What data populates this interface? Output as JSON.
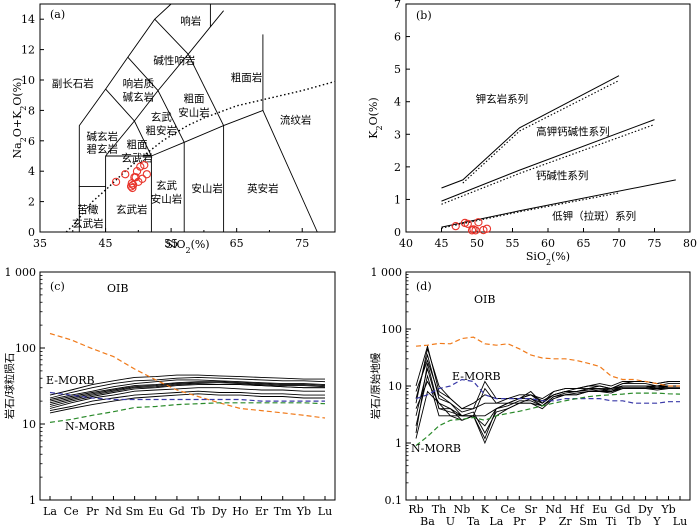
{
  "chart_data": [
    {
      "panel": "(a)",
      "type": "scatter",
      "xlabel": "SiO2(%)",
      "ylabel": "Na2O+K2O(%)",
      "xlim": [
        35,
        80
      ],
      "ylim": [
        0,
        15
      ],
      "x_ticks": [
        "35",
        "45",
        "55",
        "65",
        "75"
      ],
      "y_ticks": [
        "0",
        "2",
        "4",
        "6",
        "8",
        "10",
        "12",
        "14"
      ],
      "field_labels": [
        {
          "text": "响岩",
          "x": 58,
          "y": 13.9
        },
        {
          "text": "碱性响岩",
          "x": 55.5,
          "y": 11.3
        },
        {
          "text": "副长石岩",
          "x": 40,
          "y": 9.8
        },
        {
          "text": "响岩质",
          "x": 50,
          "y": 9.8
        },
        {
          "text": "碱玄岩",
          "x": 50,
          "y": 8.9
        },
        {
          "text": "粗面岩",
          "x": 66.5,
          "y": 10.2
        },
        {
          "text": "粗面",
          "x": 58.5,
          "y": 8.8
        },
        {
          "text": "安山岩",
          "x": 58.5,
          "y": 7.9
        },
        {
          "text": "流纹岩",
          "x": 74,
          "y": 7.4
        },
        {
          "text": "玄武",
          "x": 53.5,
          "y": 7.6
        },
        {
          "text": "粗安岩",
          "x": 53.5,
          "y": 6.7
        },
        {
          "text": "碱玄岩",
          "x": 44.5,
          "y": 6.3
        },
        {
          "text": "碧玄岩",
          "x": 44.5,
          "y": 5.5
        },
        {
          "text": "粗面",
          "x": 49.8,
          "y": 5.8
        },
        {
          "text": "玄武岩",
          "x": 49.8,
          "y": 4.9
        },
        {
          "text": "玄武",
          "x": 54.3,
          "y": 3.1
        },
        {
          "text": "安山岩",
          "x": 54.3,
          "y": 2.2
        },
        {
          "text": "安山岩",
          "x": 60.5,
          "y": 2.9
        },
        {
          "text": "英安岩",
          "x": 69,
          "y": 2.9
        },
        {
          "text": "玄武岩",
          "x": 49,
          "y": 1.5
        },
        {
          "text": "苦橄",
          "x": 42.3,
          "y": 1.5
        },
        {
          "text": "玄武岩",
          "x": 42.3,
          "y": 0.6
        }
      ],
      "series": [
        {
          "x": [
            46.6,
            48.0,
            49.1,
            49.4,
            49.8,
            50.3,
            50.9,
            50.0,
            49.2,
            49.0,
            48.9,
            50.6,
            51.3,
            49.6
          ],
          "y": [
            3.3,
            3.8,
            2.9,
            3.6,
            4.0,
            4.3,
            4.4,
            3.3,
            3.1,
            3.2,
            3.0,
            3.5,
            3.8,
            3.6
          ],
          "color": "#e8332a"
        }
      ]
    },
    {
      "panel": "(b)",
      "type": "scatter",
      "xlabel": "SiO2(%)",
      "ylabel": "K2O(%)",
      "xlim": [
        40,
        80
      ],
      "ylim": [
        0,
        7
      ],
      "x_ticks": [
        "40",
        "45",
        "50",
        "55",
        "60",
        "65",
        "70",
        "75",
        "80"
      ],
      "y_ticks": [
        "0",
        "1",
        "2",
        "3",
        "4",
        "5",
        "6",
        "7"
      ],
      "series_labels": [
        "钾玄岩系列",
        "高钾钙碱性系列",
        "钙碱性系列",
        "低钾（拉斑）系列"
      ],
      "series": [
        {
          "x": [
            47.0,
            48.3,
            49.3,
            49.8,
            50.2,
            50.9,
            51.4,
            49.5,
            48.7
          ],
          "y": [
            0.18,
            0.28,
            0.05,
            0.05,
            0.3,
            0.06,
            0.1,
            0.08,
            0.25
          ],
          "color": "#e8332a"
        }
      ]
    },
    {
      "panel": "(c)",
      "type": "line",
      "ylabel": "岩石/球粒陨石",
      "yscale": "log",
      "ylim": [
        1,
        1000
      ],
      "y_ticks": [
        "1",
        "10",
        "100",
        "1 000"
      ],
      "categories": [
        "La",
        "Ce",
        "Pr",
        "Nd",
        "Sm",
        "Eu",
        "Gd",
        "Tb",
        "Dy",
        "Ho",
        "Er",
        "Tm",
        "Yb",
        "Lu"
      ],
      "series": [
        {
          "name": "OIB",
          "values": [
            155,
            128,
            98,
            77,
            53,
            38,
            28,
            23,
            19,
            16,
            15,
            14,
            13,
            12
          ],
          "color": "#f07a1a",
          "dash": true
        },
        {
          "name": "E-MORB",
          "values": [
            26,
            24,
            22,
            21,
            21,
            21,
            21,
            21,
            21,
            21,
            20,
            20,
            20,
            20
          ],
          "color": "#3a3aa8",
          "dash": true
        },
        {
          "name": "N-MORB",
          "values": [
            10.5,
            11.5,
            13,
            14.5,
            16.5,
            17,
            18,
            18.5,
            19,
            19,
            19,
            19,
            19,
            18.5
          ],
          "color": "#2a8a2a",
          "dash": true
        },
        {
          "values": [
            17,
            20,
            23,
            26,
            29,
            30,
            32,
            33,
            33,
            33,
            32,
            31,
            30,
            30
          ],
          "color": "#000"
        },
        {
          "values": [
            19,
            22,
            25,
            28,
            31,
            32,
            34,
            35,
            35,
            34,
            33,
            32,
            32,
            31
          ],
          "color": "#000"
        },
        {
          "values": [
            21,
            24,
            27,
            31,
            34,
            36,
            38,
            38,
            37,
            36,
            35,
            34,
            34,
            33
          ],
          "color": "#000"
        },
        {
          "values": [
            22,
            26,
            30,
            34,
            37,
            38,
            40,
            41,
            40,
            39,
            38,
            37,
            37,
            36
          ],
          "color": "#000"
        },
        {
          "values": [
            24,
            28,
            33,
            37,
            41,
            42,
            44,
            44,
            43,
            42,
            41,
            40,
            39,
            39
          ],
          "color": "#000"
        },
        {
          "values": [
            16,
            19,
            22,
            24,
            27,
            28,
            29,
            30,
            30,
            29,
            28,
            28,
            27,
            27
          ],
          "color": "#000"
        },
        {
          "values": [
            15,
            17,
            20,
            22,
            24,
            25,
            26,
            27,
            26,
            26,
            25,
            25,
            24,
            24
          ],
          "color": "#000"
        },
        {
          "values": [
            18,
            21,
            24,
            27,
            30,
            31,
            33,
            34,
            33,
            33,
            32,
            31,
            30,
            30
          ],
          "color": "#000"
        },
        {
          "values": [
            14,
            16,
            18,
            20,
            22,
            23,
            24,
            25,
            24,
            24,
            23,
            23,
            22,
            22
          ],
          "color": "#000"
        },
        {
          "values": [
            20,
            23,
            26,
            29,
            32,
            33,
            35,
            36,
            36,
            35,
            34,
            33,
            33,
            32
          ],
          "color": "#000"
        }
      ]
    },
    {
      "panel": "(d)",
      "type": "line",
      "ylabel": "岩石/原始地幔",
      "yscale": "log",
      "ylim": [
        0.1,
        1000
      ],
      "y_ticks": [
        "0.1",
        "1",
        "10",
        "100",
        "1 000"
      ],
      "categories": [
        "Rb",
        "Ba",
        "Th",
        "U",
        "Nb",
        "Ta",
        "K",
        "La",
        "Ce",
        "Pr",
        "Sr",
        "P",
        "Nd",
        "Zr",
        "Hf",
        "Sm",
        "Eu",
        "Ti",
        "Gd",
        "Tb",
        "Dy",
        "Y",
        "Yb",
        "Lu"
      ],
      "series": [
        {
          "name": "OIB",
          "values": [
            50,
            52,
            56,
            55,
            68,
            72,
            55,
            52,
            55,
            45,
            35,
            31,
            30,
            30,
            28,
            25,
            22,
            15,
            13,
            13,
            12,
            11,
            10,
            10
          ],
          "color": "#f07a1a",
          "dash": true
        },
        {
          "name": "E-MORB",
          "values": [
            6,
            7,
            9,
            10,
            13,
            12,
            7,
            6,
            6,
            6,
            6,
            5.5,
            5.5,
            6,
            6,
            6,
            6,
            5.5,
            5.5,
            5,
            5,
            5,
            5.3,
            5.3
          ],
          "color": "#3a3aa8",
          "dash": true
        },
        {
          "name": "N-MORB",
          "values": [
            0.9,
            1.3,
            2.0,
            2.5,
            2.6,
            2.8,
            2.5,
            3.0,
            3.3,
            3.6,
            4.0,
            4.5,
            5.0,
            5.5,
            6.0,
            6.5,
            6.8,
            7.0,
            7.2,
            7.5,
            7.5,
            7.5,
            7.3,
            7.2
          ],
          "color": "#2a8a2a",
          "dash": true
        },
        {
          "values": [
            10,
            50,
            8,
            6,
            4,
            5,
            7,
            6,
            6,
            7,
            7,
            6,
            8,
            9,
            9,
            10,
            10,
            9,
            11,
            11,
            11,
            10,
            11,
            11
          ],
          "color": "#000"
        },
        {
          "values": [
            6,
            35,
            6,
            5,
            3,
            3,
            9,
            5,
            5,
            6,
            8,
            5,
            7,
            8,
            8,
            9,
            9,
            8,
            10,
            10,
            10,
            9,
            10,
            10
          ],
          "color": "#000"
        },
        {
          "values": [
            3,
            20,
            4,
            4,
            2.5,
            3,
            2,
            4,
            5,
            6,
            6,
            5,
            7,
            8,
            8,
            9,
            10,
            9,
            11,
            12,
            12,
            11,
            12,
            12
          ],
          "color": "#000"
        },
        {
          "values": [
            1.2,
            8,
            5,
            3,
            3,
            3.5,
            1.5,
            3.5,
            4,
            5,
            5,
            4.5,
            6,
            7,
            7,
            8,
            8,
            8,
            9,
            9,
            9,
            9,
            9,
            9
          ],
          "color": "#000"
        },
        {
          "values": [
            5,
            45,
            10,
            6,
            4,
            4,
            12,
            6,
            6,
            6,
            7,
            5.5,
            7,
            8,
            9,
            9,
            9,
            9,
            10,
            10,
            10,
            10,
            10,
            10
          ],
          "color": "#000"
        },
        {
          "values": [
            2,
            15,
            3,
            3,
            2.5,
            3,
            1.0,
            3,
            4,
            5,
            5,
            4,
            6,
            7,
            7,
            8,
            8,
            7.5,
            9,
            9,
            9,
            8.5,
            9,
            9
          ],
          "color": "#000"
        },
        {
          "values": [
            8,
            28,
            7,
            5,
            3.5,
            4,
            5,
            5,
            6,
            6,
            7,
            5,
            8,
            9,
            9,
            10,
            11,
            10,
            12,
            12,
            12,
            11,
            12,
            12
          ],
          "color": "#000"
        },
        {
          "values": [
            4,
            12,
            5,
            4,
            3,
            3,
            3,
            4,
            5,
            5,
            6,
            4.5,
            6.5,
            7.5,
            8,
            8.5,
            9,
            8.5,
            10,
            10,
            10,
            9.5,
            10,
            10
          ],
          "color": "#000"
        },
        {
          "values": [
            1.5,
            25,
            4,
            3.5,
            3,
            3,
            1.2,
            4,
            4.5,
            5.5,
            5.5,
            4.5,
            6.5,
            7,
            7.5,
            8,
            8.5,
            8,
            9.5,
            9.5,
            9.5,
            9,
            9.5,
            9.5
          ],
          "color": "#000"
        }
      ]
    }
  ]
}
